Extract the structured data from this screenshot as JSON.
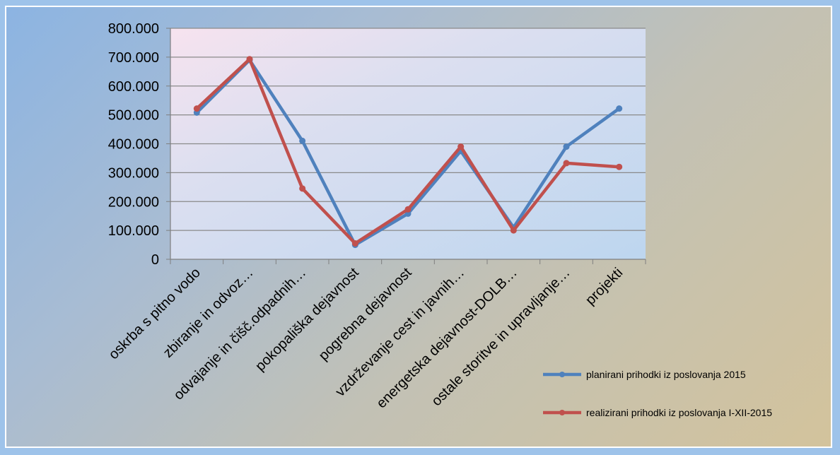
{
  "chart_data": {
    "type": "line",
    "categories": [
      "oskrba s pitno vodo",
      "zbiranje in odvoz…",
      "odvajanje in čišč.odpadnih…",
      "pokopališka dejavnost",
      "pogrebna dejavnost",
      "vzdrževanje cest in javnih…",
      "energetska dejavnost-DOLB…",
      "ostale storitve in upravljanje…",
      "projekti"
    ],
    "series": [
      {
        "name": "planirani prihodki iz poslovanja 2015",
        "color": "#4f81bd",
        "values": [
          508000,
          690000,
          410000,
          50000,
          158000,
          375000,
          110000,
          390000,
          522000
        ]
      },
      {
        "name": "realizirani prihodki iz poslovanja I-XII-2015",
        "color": "#c0504d",
        "values": [
          522000,
          693000,
          245000,
          55000,
          173000,
          390000,
          100000,
          333000,
          320000
        ]
      }
    ],
    "y_ticks": [
      "0",
      "100.000",
      "200.000",
      "300.000",
      "400.000",
      "500.000",
      "600.000",
      "700.000",
      "800.000"
    ],
    "ylim": [
      0,
      800000
    ],
    "grid": true,
    "legend_position": "bottom-right"
  }
}
